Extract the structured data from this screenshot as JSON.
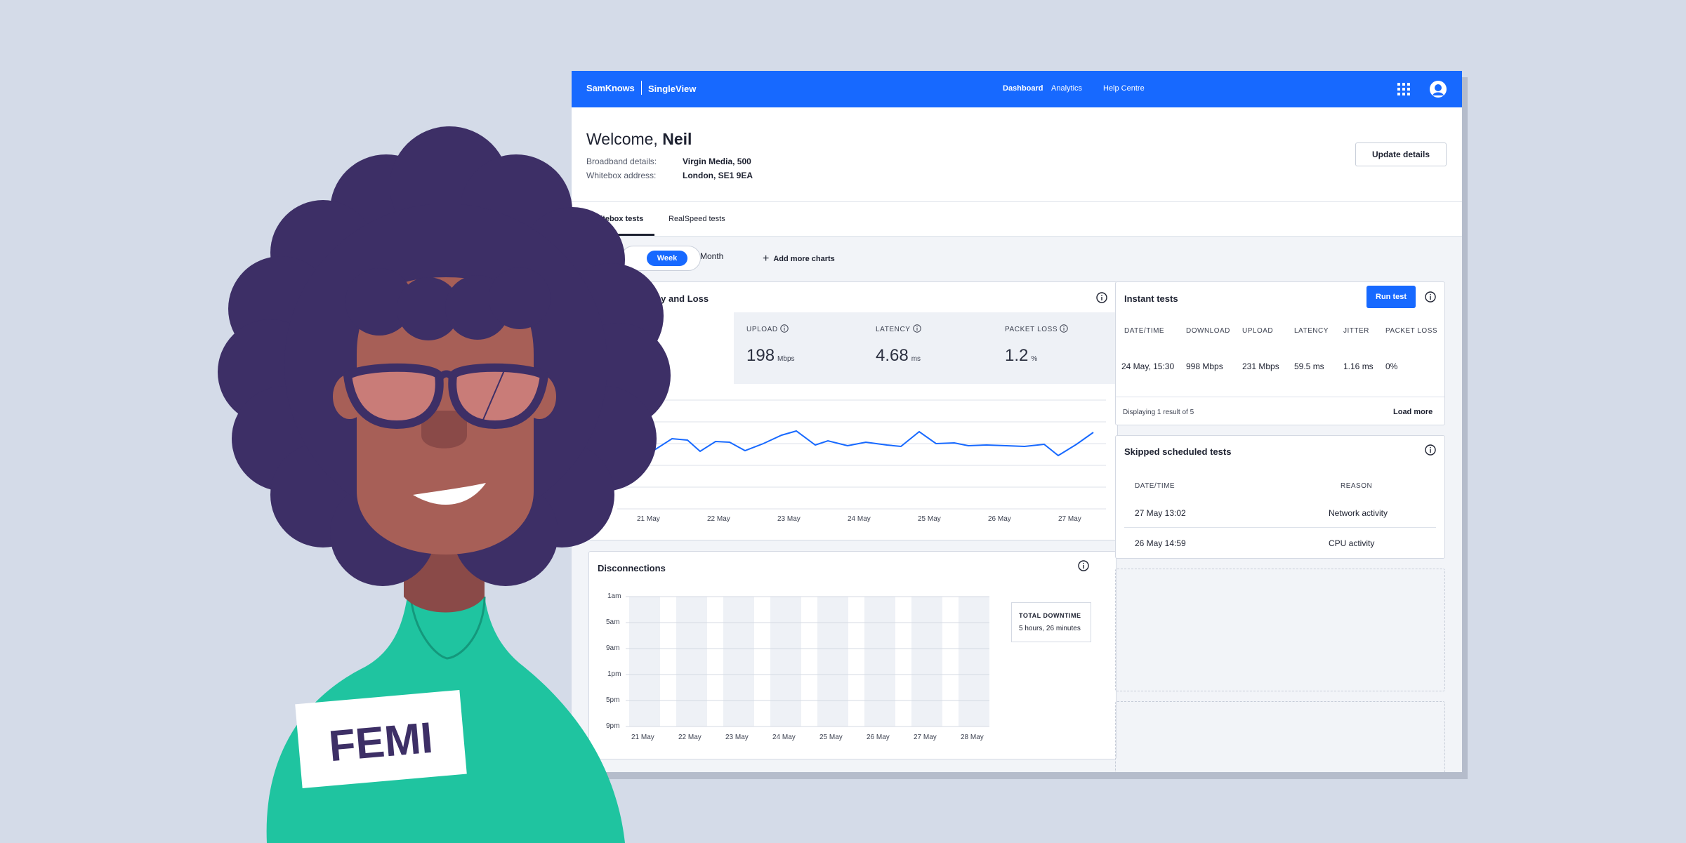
{
  "header": {
    "brand": "SamKnows",
    "product": "SingleView",
    "nav": [
      "Dashboard",
      "Analytics",
      "Help Centre"
    ],
    "active_nav": "Dashboard",
    "accent_color": "#1769ff"
  },
  "welcome": {
    "greeting": "Welcome,",
    "name": "Neil",
    "broadband_label": "Broadband details:",
    "broadband_value": "Virgin Media, 500",
    "whitebox_label": "Whitebox address:",
    "whitebox_value": "London, SE1 9EA",
    "update_button": "Update details"
  },
  "tabs": [
    "Whitebox tests",
    "RealSpeed tests"
  ],
  "active_tab": "Whitebox tests",
  "period": {
    "week": "Week",
    "month": "Month",
    "selected": "Week"
  },
  "add_charts": "Add more charts",
  "speed_card": {
    "title": "Speed, Latency and Loss",
    "metrics": [
      {
        "label": "UPLOAD",
        "value": "198",
        "unit": "Mbps"
      },
      {
        "label": "LATENCY",
        "value": "4.68",
        "unit": "ms"
      },
      {
        "label": "PACKET LOSS",
        "value": "1.2",
        "unit": "%"
      }
    ],
    "x_labels": [
      "21 May",
      "22 May",
      "23 May",
      "24 May",
      "25 May",
      "26 May",
      "27 May"
    ]
  },
  "disconnections_card": {
    "title": "Disconnections",
    "y_labels": [
      "1am",
      "5am",
      "9am",
      "1pm",
      "5pm",
      "9pm"
    ],
    "x_labels": [
      "21 May",
      "22 May",
      "23 May",
      "24 May",
      "25 May",
      "26 May",
      "27 May",
      "28 May"
    ],
    "downtime_label": "TOTAL DOWNTIME",
    "downtime_value": "5 hours, 26 minutes"
  },
  "instant_tests": {
    "title": "Instant tests",
    "run_button": "Run test",
    "columns": [
      "DATE/TIME",
      "DOWNLOAD",
      "UPLOAD",
      "LATENCY",
      "JITTER",
      "PACKET LOSS"
    ],
    "rows": [
      [
        "24 May, 15:30",
        "998 Mbps",
        "231 Mbps",
        "59.5 ms",
        "1.16 ms",
        "0%"
      ]
    ],
    "footer": "Displaying 1 result of 5",
    "load_more": "Load more"
  },
  "skipped_tests": {
    "title": "Skipped scheduled tests",
    "columns": [
      "DATE/TIME",
      "REASON"
    ],
    "rows": [
      [
        "27 May 13:02",
        "Network activity"
      ],
      [
        "26 May 14:59",
        "CPU activity"
      ]
    ]
  },
  "badge": {
    "name": "FEMI"
  },
  "colors": {
    "background": "#d4dbe8",
    "hair": "#3d2f66",
    "skin": "#a75f57",
    "shirt": "#1fc4a0"
  }
}
